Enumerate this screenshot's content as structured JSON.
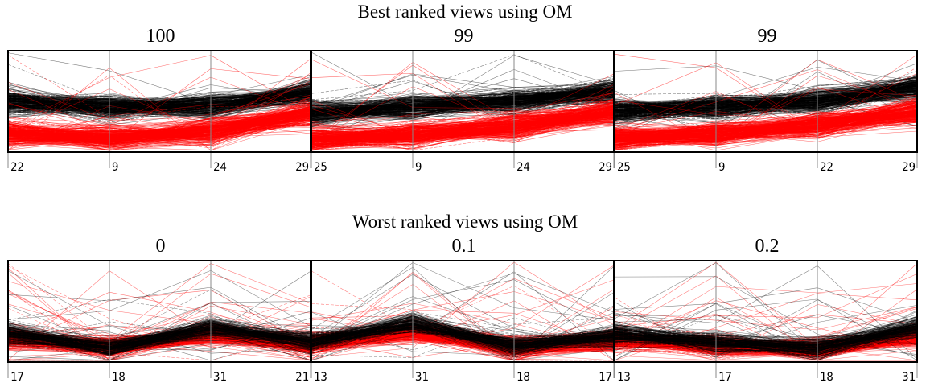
{
  "sections": [
    {
      "title": "Best ranked views using OM"
    },
    {
      "title": "Worst ranked views using OM"
    }
  ],
  "colors": {
    "class_a": "#ff0000",
    "class_b": "#000000",
    "axis": "#8a8a8a",
    "frame": "#000000"
  },
  "chart_data": [
    {
      "type": "parallel_coordinates",
      "title": "100",
      "axes": [
        "22",
        "9",
        "24",
        "29"
      ],
      "pattern": "best-1"
    },
    {
      "type": "parallel_coordinates",
      "title": "99",
      "axes": [
        "25",
        "9",
        "24",
        "29"
      ],
      "pattern": "best-2"
    },
    {
      "type": "parallel_coordinates",
      "title": "99",
      "axes": [
        "25",
        "9",
        "22",
        "29"
      ],
      "pattern": "best-3"
    },
    {
      "type": "parallel_coordinates",
      "title": "0",
      "axes": [
        "17",
        "18",
        "31",
        "21"
      ],
      "pattern": "worst-1"
    },
    {
      "type": "parallel_coordinates",
      "title": "0.1",
      "axes": [
        "13",
        "31",
        "18",
        "17"
      ],
      "pattern": "worst-2"
    },
    {
      "type": "parallel_coordinates",
      "title": "0.2",
      "axes": [
        "13",
        "17",
        "18",
        "31"
      ],
      "pattern": "worst-3"
    }
  ]
}
